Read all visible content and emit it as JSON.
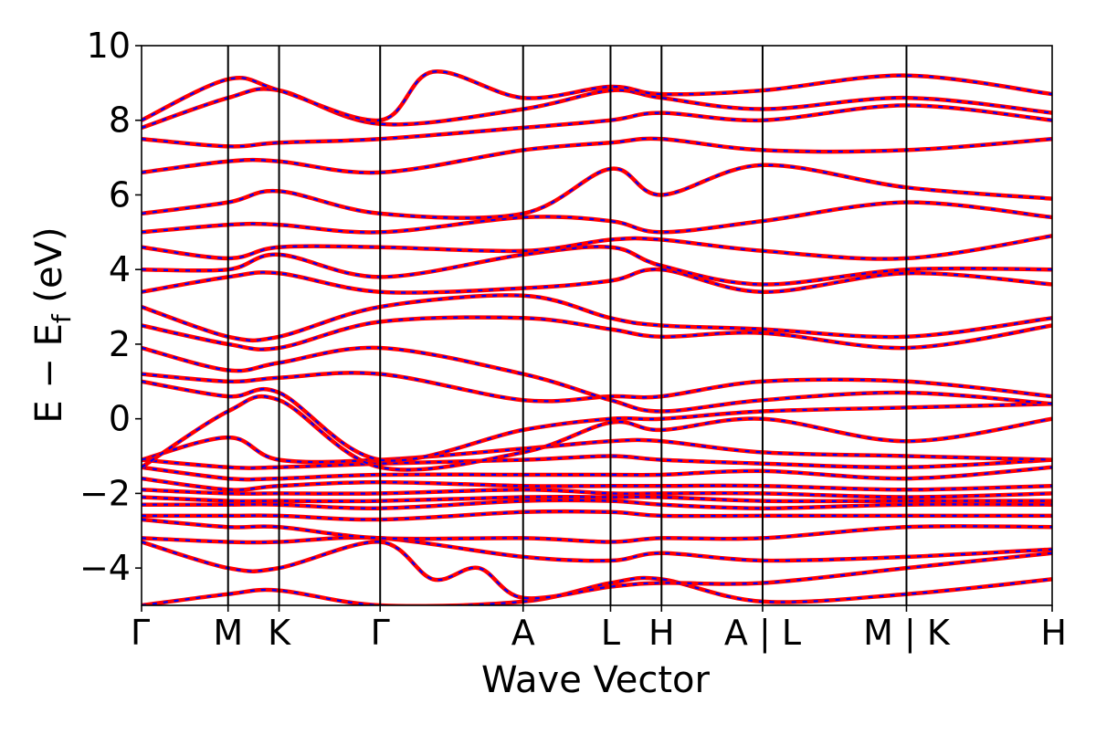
{
  "chart_data": {
    "type": "line",
    "title": "",
    "xlabel": "Wave Vector",
    "ylabel": {
      "main": "E − E",
      "subscript": "f",
      "unit": " (eV)"
    },
    "ylim": [
      -5,
      10
    ],
    "yticks": [
      10,
      8,
      6,
      4,
      2,
      0,
      -2,
      -4
    ],
    "ytick_labels": [
      "10",
      "8",
      "6",
      "4",
      "2",
      "0",
      "−2",
      "−4"
    ],
    "xlim": [
      0,
      1
    ],
    "kpath_ticks": [
      {
        "label": "Γ",
        "x": 0.0
      },
      {
        "label": "M",
        "x": 0.095
      },
      {
        "label": "K",
        "x": 0.151
      },
      {
        "label": "Γ",
        "x": 0.262
      },
      {
        "label": "A",
        "x": 0.419
      },
      {
        "label": "L",
        "x": 0.515
      },
      {
        "label": "H",
        "x": 0.571
      },
      {
        "label": "A | L",
        "x": 0.682
      },
      {
        "label": "M | K",
        "x": 0.84
      },
      {
        "label": "H",
        "x": 1.0
      }
    ],
    "series": [
      {
        "name": "",
        "color": "#ff0000",
        "style": "solid"
      },
      {
        "name": "",
        "color": "#0000ff",
        "style": "dashed"
      }
    ],
    "bands": [
      {
        "x": [
          0,
          0.095,
          0.151,
          0.262,
          0.419,
          0.515,
          0.571,
          0.682,
          0.84,
          1.0
        ],
        "y": [
          -5.0,
          -4.7,
          -4.6,
          -5.0,
          -4.9,
          -4.4,
          -4.3,
          -4.9,
          -4.7,
          -4.3
        ]
      },
      {
        "x": [
          0,
          0.095,
          0.151,
          0.262,
          0.32,
          0.37,
          0.419,
          0.515,
          0.571,
          0.682,
          0.84,
          1.0
        ],
        "y": [
          -3.3,
          -4.0,
          -4.0,
          -3.3,
          -4.3,
          -4.0,
          -4.8,
          -4.5,
          -4.4,
          -4.4,
          -4.0,
          -3.6
        ]
      },
      {
        "x": [
          0,
          0.095,
          0.151,
          0.262,
          0.419,
          0.515,
          0.571,
          0.682,
          0.84,
          1.0
        ],
        "y": [
          -3.2,
          -3.3,
          -3.3,
          -3.2,
          -3.7,
          -3.8,
          -3.6,
          -3.8,
          -3.7,
          -3.5
        ]
      },
      {
        "x": [
          0,
          0.095,
          0.151,
          0.262,
          0.419,
          0.515,
          0.571,
          0.682,
          0.84,
          1.0
        ],
        "y": [
          -2.7,
          -2.9,
          -2.9,
          -3.2,
          -3.2,
          -3.3,
          -3.2,
          -3.2,
          -2.9,
          -2.9
        ]
      },
      {
        "x": [
          0,
          0.095,
          0.151,
          0.262,
          0.419,
          0.515,
          0.571,
          0.682,
          0.84,
          1.0
        ],
        "y": [
          -2.6,
          -2.6,
          -2.6,
          -2.7,
          -2.5,
          -2.5,
          -2.6,
          -2.6,
          -2.6,
          -2.6
        ]
      },
      {
        "x": [
          0,
          0.095,
          0.151,
          0.262,
          0.419,
          0.515,
          0.571,
          0.682,
          0.84,
          1.0
        ],
        "y": [
          -2.3,
          -2.3,
          -2.3,
          -2.4,
          -2.2,
          -2.2,
          -2.3,
          -2.4,
          -2.3,
          -2.3
        ]
      },
      {
        "x": [
          0,
          0.095,
          0.151,
          0.262,
          0.419,
          0.515,
          0.571,
          0.682,
          0.84,
          1.0
        ],
        "y": [
          -2.1,
          -2.2,
          -2.2,
          -2.2,
          -2.1,
          -2.1,
          -2.1,
          -2.2,
          -2.2,
          -2.2
        ]
      },
      {
        "x": [
          0,
          0.095,
          0.151,
          0.262,
          0.419,
          0.515,
          0.571,
          0.682,
          0.84,
          1.0
        ],
        "y": [
          -1.9,
          -2.0,
          -2.0,
          -2.0,
          -1.9,
          -2.0,
          -2.0,
          -2.0,
          -2.1,
          -2.0
        ]
      },
      {
        "x": [
          0,
          0.095,
          0.151,
          0.262,
          0.419,
          0.515,
          0.571,
          0.682,
          0.84,
          1.0
        ],
        "y": [
          -1.6,
          -1.9,
          -1.8,
          -1.7,
          -1.8,
          -1.8,
          -1.8,
          -1.8,
          -1.9,
          -1.8
        ]
      },
      {
        "x": [
          0,
          0.095,
          0.151,
          0.262,
          0.419,
          0.515,
          0.571,
          0.682,
          0.84,
          1.0
        ],
        "y": [
          -1.3,
          -1.6,
          -1.6,
          -1.5,
          -1.5,
          -1.5,
          -1.5,
          -1.4,
          -1.6,
          -1.3
        ]
      },
      {
        "x": [
          0,
          0.095,
          0.151,
          0.262,
          0.419,
          0.515,
          0.571,
          0.682,
          0.84,
          1.0
        ],
        "y": [
          -1.1,
          -1.3,
          -1.3,
          -1.2,
          -1.1,
          -1.0,
          -1.1,
          -1.2,
          -1.3,
          -1.1
        ]
      },
      {
        "x": [
          0,
          0.095,
          0.151,
          0.262,
          0.419,
          0.515,
          0.571,
          0.682,
          0.84,
          1.0
        ],
        "y": [
          -1.1,
          -0.5,
          -1.1,
          -1.1,
          -0.8,
          -0.6,
          -0.6,
          -0.9,
          -1.0,
          -1.1
        ]
      },
      {
        "x": [
          0,
          0.095,
          0.151,
          0.262,
          0.419,
          0.515,
          0.571,
          0.682,
          0.84,
          1.0
        ],
        "y": [
          -1.3,
          0.2,
          0.5,
          -1.3,
          -0.9,
          -0.1,
          -0.3,
          0.0,
          -0.6,
          0.0
        ]
      },
      {
        "x": [
          0,
          0.095,
          0.151,
          0.262,
          0.419,
          0.515,
          0.571,
          0.682,
          0.84,
          1.0
        ],
        "y": [
          1.0,
          0.6,
          0.7,
          -1.1,
          -0.3,
          0.0,
          0.0,
          0.2,
          0.3,
          0.4
        ]
      },
      {
        "x": [
          0,
          0.095,
          0.151,
          0.262,
          0.419,
          0.515,
          0.571,
          0.682,
          0.84,
          1.0
        ],
        "y": [
          1.2,
          1.0,
          1.1,
          1.2,
          0.5,
          0.6,
          0.6,
          1.0,
          1.0,
          0.6
        ]
      },
      {
        "x": [
          0,
          0.095,
          0.151,
          0.262,
          0.419,
          0.515,
          0.571,
          0.682,
          0.84,
          1.0
        ],
        "y": [
          1.9,
          1.3,
          1.5,
          1.9,
          1.2,
          0.5,
          0.2,
          0.5,
          0.7,
          0.4
        ]
      },
      {
        "x": [
          0,
          0.095,
          0.151,
          0.262,
          0.419,
          0.515,
          0.571,
          0.682,
          0.84,
          1.0
        ],
        "y": [
          2.5,
          2.0,
          1.9,
          2.6,
          2.7,
          2.4,
          2.2,
          2.3,
          1.9,
          2.5
        ]
      },
      {
        "x": [
          0,
          0.095,
          0.151,
          0.262,
          0.419,
          0.515,
          0.571,
          0.682,
          0.84,
          1.0
        ],
        "y": [
          3.0,
          2.2,
          2.2,
          3.0,
          3.3,
          2.7,
          2.5,
          2.4,
          2.2,
          2.7
        ]
      },
      {
        "x": [
          0,
          0.095,
          0.151,
          0.262,
          0.419,
          0.515,
          0.571,
          0.682,
          0.84,
          1.0
        ],
        "y": [
          3.4,
          3.8,
          3.9,
          3.4,
          3.5,
          3.7,
          4.0,
          3.4,
          3.9,
          3.6
        ]
      },
      {
        "x": [
          0,
          0.095,
          0.151,
          0.262,
          0.419,
          0.515,
          0.571,
          0.682,
          0.84,
          1.0
        ],
        "y": [
          4.0,
          4.0,
          4.4,
          3.8,
          4.4,
          4.6,
          4.1,
          3.6,
          4.0,
          4.0
        ]
      },
      {
        "x": [
          0,
          0.095,
          0.151,
          0.262,
          0.419,
          0.515,
          0.571,
          0.682,
          0.84,
          1.0
        ],
        "y": [
          4.6,
          4.3,
          4.6,
          4.6,
          4.5,
          4.8,
          4.8,
          4.5,
          4.3,
          4.9
        ]
      },
      {
        "x": [
          0,
          0.095,
          0.151,
          0.262,
          0.419,
          0.515,
          0.571,
          0.682,
          0.84,
          1.0
        ],
        "y": [
          5.0,
          5.2,
          5.2,
          5.0,
          5.4,
          5.3,
          5.0,
          5.3,
          5.8,
          5.4
        ]
      },
      {
        "x": [
          0,
          0.095,
          0.151,
          0.262,
          0.419,
          0.515,
          0.571,
          0.682,
          0.84,
          1.0
        ],
        "y": [
          5.5,
          5.8,
          6.1,
          5.5,
          5.5,
          6.7,
          6.0,
          6.8,
          6.2,
          5.9
        ]
      },
      {
        "x": [
          0,
          0.095,
          0.151,
          0.262,
          0.419,
          0.515,
          0.571,
          0.682,
          0.84,
          1.0
        ],
        "y": [
          6.6,
          6.9,
          6.9,
          6.6,
          7.2,
          7.4,
          7.5,
          7.2,
          7.2,
          7.5
        ]
      },
      {
        "x": [
          0,
          0.095,
          0.151,
          0.262,
          0.419,
          0.515,
          0.571,
          0.682,
          0.84,
          1.0
        ],
        "y": [
          7.5,
          7.3,
          7.4,
          7.5,
          7.8,
          8.0,
          8.2,
          8.0,
          8.4,
          8.0
        ]
      },
      {
        "x": [
          0,
          0.095,
          0.151,
          0.262,
          0.419,
          0.515,
          0.571,
          0.682,
          0.84,
          1.0
        ],
        "y": [
          7.8,
          8.6,
          8.8,
          7.9,
          8.3,
          8.8,
          8.6,
          8.3,
          8.6,
          8.2
        ]
      },
      {
        "x": [
          0,
          0.095,
          0.151,
          0.262,
          0.32,
          0.419,
          0.515,
          0.571,
          0.682,
          0.84,
          1.0
        ],
        "y": [
          8.0,
          9.1,
          8.8,
          8.0,
          9.3,
          8.6,
          8.9,
          8.7,
          8.8,
          9.2,
          8.7
        ]
      }
    ]
  }
}
